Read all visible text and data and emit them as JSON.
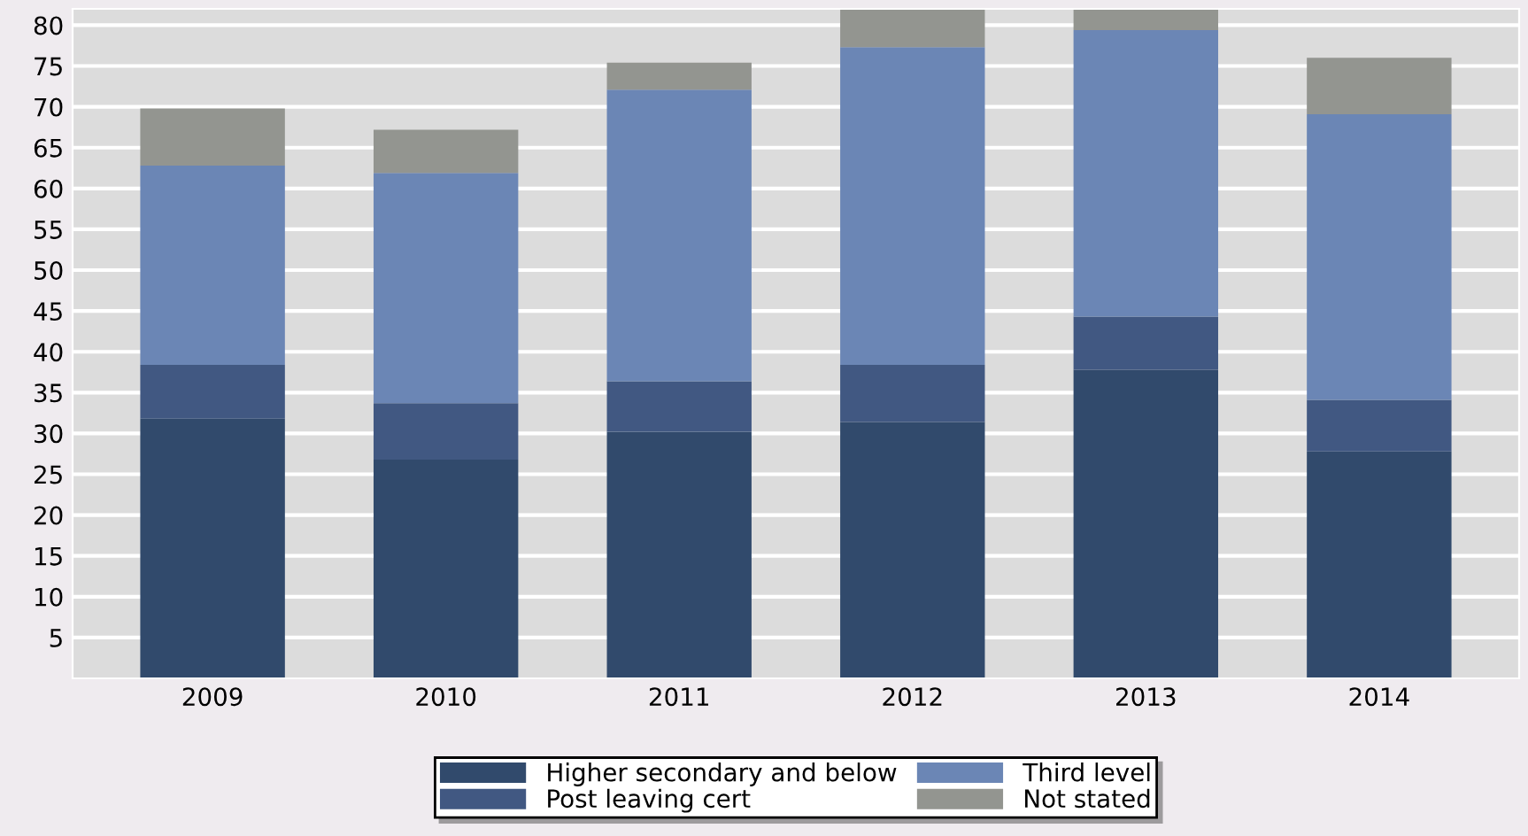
{
  "chart_data": {
    "type": "bar",
    "stacked": true,
    "categories": [
      "2009",
      "2010",
      "2011",
      "2012",
      "2013",
      "2014"
    ],
    "series": [
      {
        "name": "Higher secondary and below",
        "color": "#314a6c",
        "values": [
          31.8,
          26.8,
          30.2,
          31.4,
          37.8,
          27.8
        ]
      },
      {
        "name": "Post leaving cert",
        "color": "#415882",
        "values": [
          6.6,
          6.9,
          6.2,
          7.0,
          6.5,
          6.3
        ]
      },
      {
        "name": "Third level",
        "color": "#6b86b5",
        "values": [
          24.4,
          28.2,
          35.7,
          38.9,
          35.1,
          35.0
        ]
      },
      {
        "name": "Not stated",
        "color": "#939590",
        "values": [
          7.0,
          5.3,
          3.3,
          4.7,
          2.6,
          6.9
        ]
      }
    ],
    "ylim": [
      0,
      82
    ],
    "yticks": [
      5,
      10,
      15,
      20,
      25,
      30,
      35,
      40,
      45,
      50,
      55,
      60,
      65,
      70,
      75,
      80
    ],
    "grid": "y",
    "legend": "bottom"
  }
}
